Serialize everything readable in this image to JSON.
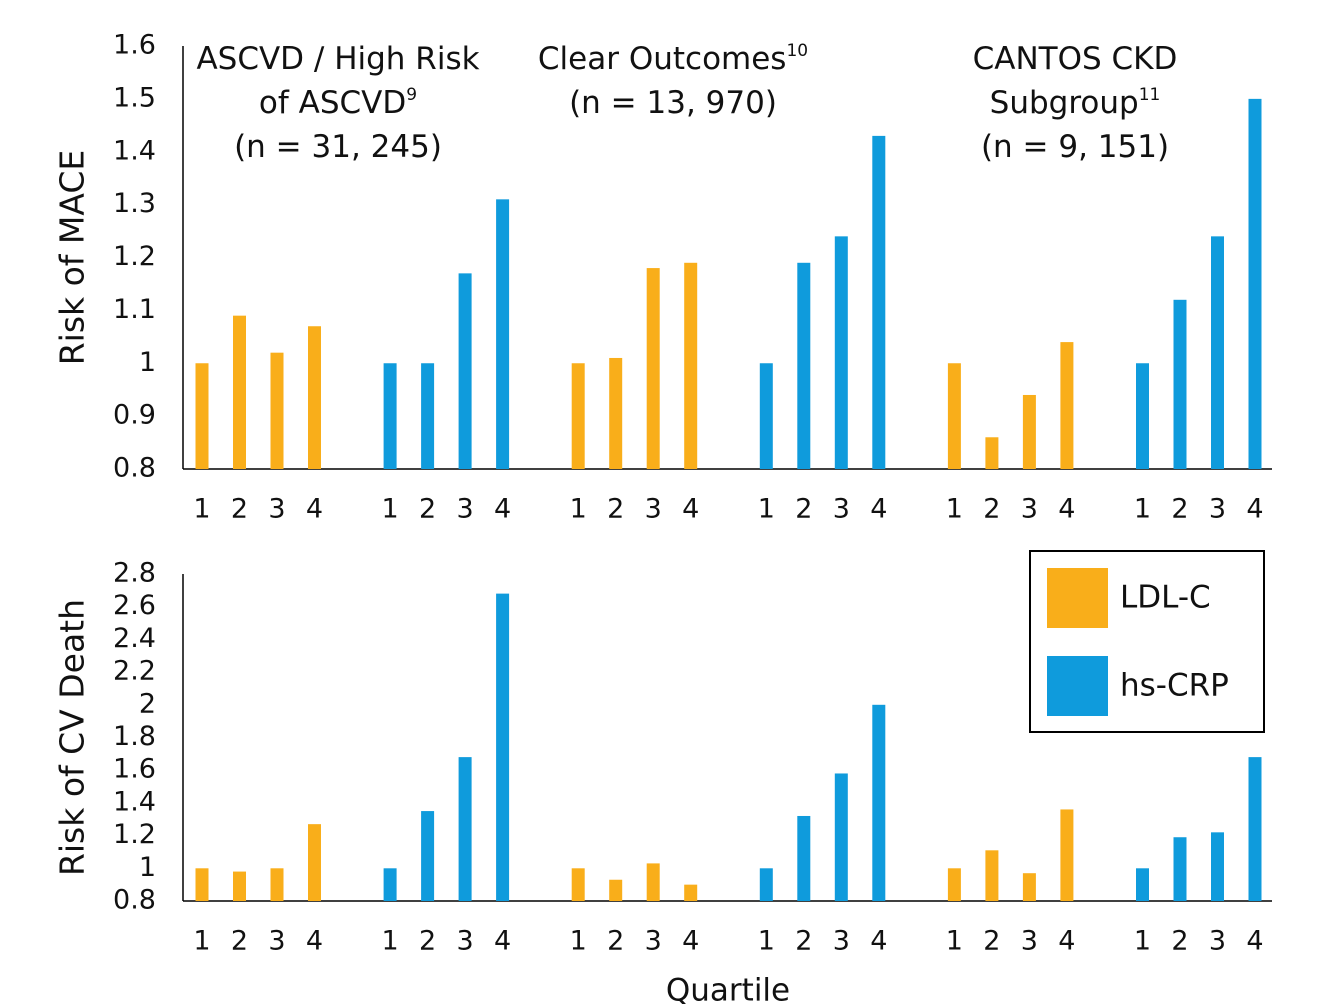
{
  "studies": [
    {
      "title": "ASCVD / High Risk of ASCVD",
      "ref": "9",
      "n": "(n = 31, 245)"
    },
    {
      "title": "Clear Outcomes",
      "ref": "10",
      "n": "(n = 13, 970)"
    },
    {
      "title": "CANTOS CKD Subgroup",
      "ref": "11",
      "n": "(n = 9, 151)"
    }
  ],
  "chart_data": [
    {
      "type": "bar",
      "ylabel": "Risk of MACE",
      "categories": [
        "1",
        "2",
        "3",
        "4"
      ],
      "ylim": [
        0.8,
        1.6
      ],
      "yticks": [
        0.8,
        0.9,
        1,
        1.1,
        1.2,
        1.3,
        1.4,
        1.5,
        1.6
      ],
      "series": [
        {
          "color": "#f9ae1a",
          "values": [
            [
              1.0,
              1.09,
              1.02,
              1.07
            ],
            [
              1.0,
              1.01,
              1.18,
              1.19
            ],
            [
              1.0,
              0.86,
              0.94,
              1.04
            ]
          ]
        },
        {
          "color": "#0f9bdc",
          "values": [
            [
              1.0,
              1.0,
              1.17,
              1.31
            ],
            [
              1.0,
              1.19,
              1.24,
              1.43
            ],
            [
              1.0,
              1.12,
              1.24,
              1.5
            ]
          ]
        }
      ]
    },
    {
      "type": "bar",
      "ylabel": "Risk of CV Death",
      "xlabel": "Quartile",
      "legend": "upper right",
      "categories": [
        "1",
        "2",
        "3",
        "4"
      ],
      "ylim": [
        0.8,
        2.8
      ],
      "yticks": [
        0.8,
        1,
        1.2,
        1.4,
        1.6,
        1.8,
        2,
        2.2,
        2.4,
        2.6,
        2.8
      ],
      "series": [
        {
          "name": "LDL-C",
          "color": "#f9ae1a",
          "values": [
            [
              1.0,
              0.98,
              1.0,
              1.27
            ],
            [
              1.0,
              0.93,
              1.03,
              0.9
            ],
            [
              1.0,
              1.11,
              0.97,
              1.36
            ]
          ]
        },
        {
          "name": "hs-CRP",
          "color": "#0f9bdc",
          "values": [
            [
              1.0,
              1.35,
              1.68,
              2.68
            ],
            [
              1.0,
              1.32,
              1.58,
              2.0
            ],
            [
              1.0,
              1.19,
              1.22,
              1.68
            ]
          ]
        }
      ]
    }
  ]
}
